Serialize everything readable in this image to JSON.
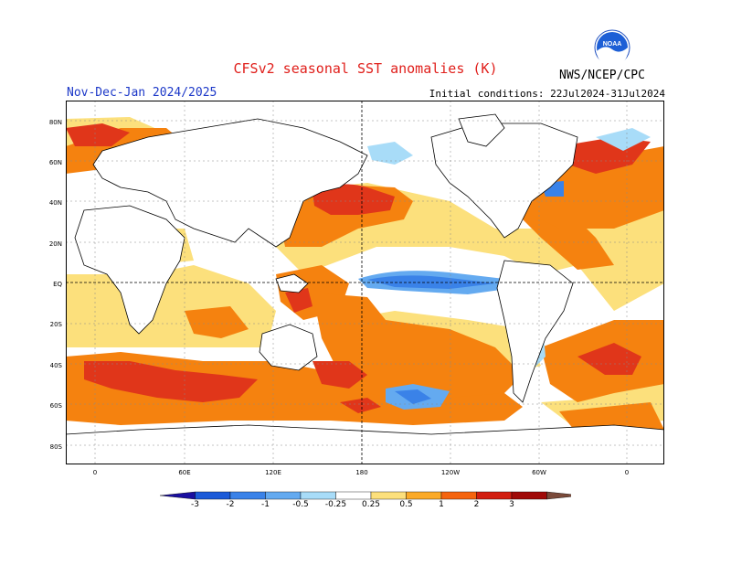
{
  "header": {
    "title": "CFSv2 seasonal SST anomalies (K)",
    "period": "Nov-Dec-Jan 2024/2025",
    "initial_conditions": "Initial conditions: 22Jul2024-31Jul2024",
    "agency": "NWS/NCEP/CPC",
    "logo_text": "NOAA"
  },
  "map": {
    "lat_labels": [
      "80N",
      "60N",
      "40N",
      "20N",
      "EQ",
      "20S",
      "40S",
      "60S",
      "80S"
    ],
    "lon_labels": [
      "0",
      "60E",
      "120E",
      "180",
      "120W",
      "60W",
      "0"
    ]
  },
  "colorbar": {
    "ticks": [
      "-3",
      "-2",
      "-1",
      "-0.5",
      "-0.25",
      "0.25",
      "0.5",
      "1",
      "2",
      "3"
    ],
    "colors": [
      "#1a0fa0",
      "#1c5ad8",
      "#3a82e8",
      "#64aaf0",
      "#a8dcf8",
      "#ffffff",
      "#fce07c",
      "#fbaa28",
      "#f5640e",
      "#d21e10",
      "#a00a08",
      "#7a4a3a"
    ]
  }
}
